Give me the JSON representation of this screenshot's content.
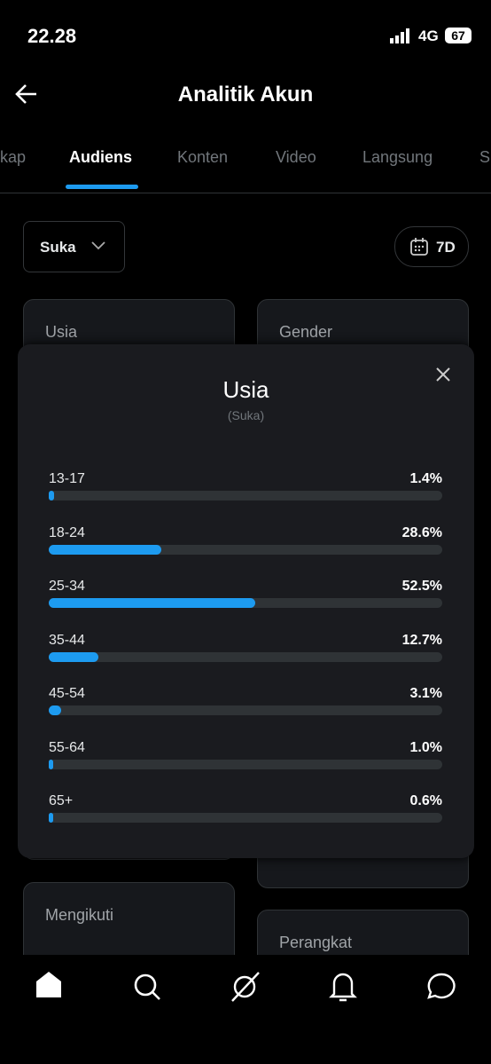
{
  "status_bar": {
    "time": "22.28",
    "network": "4G",
    "battery": "67"
  },
  "header": {
    "title": "Analitik Akun"
  },
  "tabs": [
    "kap",
    "Audiens",
    "Konten",
    "Video",
    "Langsung",
    "S"
  ],
  "filters": {
    "metric": "Suka",
    "period": "7D"
  },
  "cards": [
    "Usia",
    "Gender",
    "Mengikuti",
    "Perangkat"
  ],
  "modal": {
    "type": "bar",
    "title": "Usia",
    "subtitle": "(Suka)",
    "categories": [
      "13-17",
      "18-24",
      "25-34",
      "35-44",
      "45-54",
      "55-64",
      "65+"
    ],
    "values": [
      1.4,
      28.6,
      52.5,
      12.7,
      3.1,
      1.0,
      0.6
    ],
    "value_labels": [
      "1.4%",
      "28.6%",
      "52.5%",
      "12.7%",
      "3.1%",
      "1.0%",
      "0.6%"
    ],
    "xlim": [
      0,
      100
    ],
    "color": "#1d9bf0",
    "track_color": "#2f3336"
  }
}
